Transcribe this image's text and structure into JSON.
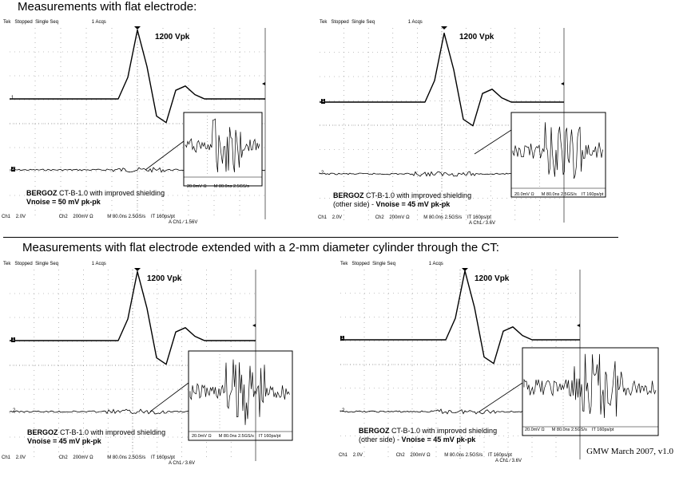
{
  "titles": {
    "top": "Measurements with flat electrode:",
    "bottom": "Measurements with flat electrode extended with a 2-mm diameter cylinder through the CT:"
  },
  "footer_note": "GMW March 2007, v1.0",
  "scopes": [
    {
      "header": {
        "brand": "Tek",
        "state": "Stopped",
        "mode": "Single Seq",
        "acqs": "1 Acqs"
      },
      "peak_label": "1200 Vpk",
      "caption": {
        "brand": "BERGOZ",
        "text": " CT-B-1.0 with improved shielding",
        "side": "",
        "noise": "Vnoise = 50 mV pk-pk"
      },
      "status": {
        "ch1": "Ch1",
        "ch1_scale": "2.0V",
        "ch2": "Ch2",
        "ch2_scale": "200mV",
        "ohm": "Ω",
        "time": "M 80.0ns 2.5GS/s",
        "it": "IT 160ps/pt",
        "trig": "A  Ch1  ∕  1.56V"
      },
      "inset_status": {
        "scale": "20.0mV",
        "ohm": "Ω",
        "time": "M 80.0ns 2.5GS/s"
      },
      "markers": {
        "ch1": "1",
        "ch2": "2"
      }
    },
    {
      "header": {
        "brand": "Tek",
        "state": "Stopped",
        "mode": "Single Seq",
        "acqs": "1 Acqs"
      },
      "peak_label": "1200 Vpk",
      "caption": {
        "brand": "BERGOZ",
        "text": " CT-B-1.0 with improved  shielding",
        "side": "(other side) - ",
        "noise": "Vnoise = 45 mV pk-pk"
      },
      "status": {
        "ch1": "Ch1",
        "ch1_scale": "2.0V",
        "ch2": "Ch2",
        "ch2_scale": "200mV",
        "ohm": "Ω",
        "time": "M 80.0ns 2.5GS/s",
        "it": "IT 160ps/pt",
        "trig": "A  Ch1  ∕  3.6V"
      },
      "inset_status": {
        "scale": "20.0mV",
        "ohm": "Ω",
        "time": "M 80.0ns 2.5GS/s",
        "it": "IT 160ps/pt"
      },
      "markers": {
        "ch1": "1",
        "ch2": "2"
      }
    },
    {
      "header": {
        "brand": "Tek",
        "state": "Stopped",
        "mode": "Single Seq",
        "acqs": "1 Acqs"
      },
      "peak_label": "1200 Vpk",
      "caption": {
        "brand": "BERGOZ",
        "text": " CT-B-1.0 with improved  shielding",
        "side": "",
        "noise": "Vnoise = 45 mV pk-pk"
      },
      "status": {
        "ch1": "Ch1",
        "ch1_scale": "2.0V",
        "ch2": "Ch2",
        "ch2_scale": "200mV",
        "ohm": "Ω",
        "time": "M 80.0ns 2.5GS/s",
        "it": "IT 160ps/pt",
        "trig": "A  Ch1  ∕  3.6V"
      },
      "inset_status": {
        "scale": "20.0mV",
        "ohm": "Ω",
        "time": "M 80.0ns 2.5GS/s",
        "it": "IT 160ps/pt"
      },
      "markers": {
        "ch1": "1",
        "ch2": "2"
      }
    },
    {
      "header": {
        "brand": "Tek",
        "state": "Stopped",
        "mode": "Single Seq",
        "acqs": "1 Acqs"
      },
      "peak_label": "1200 Vpk",
      "caption": {
        "brand": "BERGOZ",
        "text": " CT-B-1.0 with improved shielding",
        "side": "(other side) - ",
        "noise": "Vnoise = 45 mV pk-pk"
      },
      "status": {
        "ch1": "Ch1",
        "ch1_scale": "2.0V",
        "ch2": "Ch2",
        "ch2_scale": "200mV",
        "ohm": "Ω",
        "time": "M 80.0ns 2.5GS/s",
        "it": "IT 160ps/pt",
        "trig": "A  Ch1  ∕  3.6V"
      },
      "inset_status": {
        "scale": "20.0mV",
        "ohm": "Ω",
        "time": "M 80.0ns 2.5GS/s",
        "it": "IT 160ps/pt"
      },
      "markers": {
        "ch1": "1",
        "ch2": "2"
      }
    }
  ],
  "chart_data": [
    {
      "type": "line",
      "series": [
        {
          "values": [
            0,
            0,
            0,
            0,
            1,
            3.2,
            1.5,
            -0.8,
            -1.1,
            0.4,
            0.6,
            0.2,
            0,
            0
          ]
        },
        {
          "values": [
            0,
            0,
            0,
            0,
            0,
            0.03,
            -0.05,
            0.04,
            -0.02,
            0,
            0,
            0,
            0,
            0
          ]
        }
      ]
    },
    {
      "type": "line",
      "series": [
        {
          "values": [
            0,
            0,
            0,
            0,
            1,
            3.2,
            1.5,
            -0.8,
            -1.1,
            0.4,
            0.6,
            0.2,
            0,
            0
          ]
        },
        {
          "values": [
            0,
            0,
            0,
            0,
            0,
            0.03,
            -0.05,
            0.04,
            -0.02,
            0,
            0,
            0,
            0,
            0
          ]
        }
      ]
    },
    {
      "type": "line",
      "series": [
        {
          "values": [
            0,
            0,
            0,
            0,
            1,
            3.2,
            1.5,
            -0.8,
            -1.1,
            0.4,
            0.6,
            0.2,
            0,
            0
          ]
        },
        {
          "values": [
            0,
            0,
            0,
            0,
            0,
            0.03,
            -0.05,
            0.04,
            -0.02,
            0,
            0,
            0,
            0,
            0
          ]
        }
      ]
    },
    {
      "type": "line",
      "series": [
        {
          "values": [
            0,
            0,
            0,
            0,
            1,
            3.2,
            1.5,
            -0.8,
            -1.1,
            0.4,
            0.6,
            0.2,
            0,
            0
          ]
        },
        {
          "values": [
            0,
            0,
            0,
            0,
            0,
            0.03,
            -0.05,
            0.04,
            -0.02,
            0,
            0,
            0,
            0,
            0
          ]
        }
      ]
    }
  ]
}
